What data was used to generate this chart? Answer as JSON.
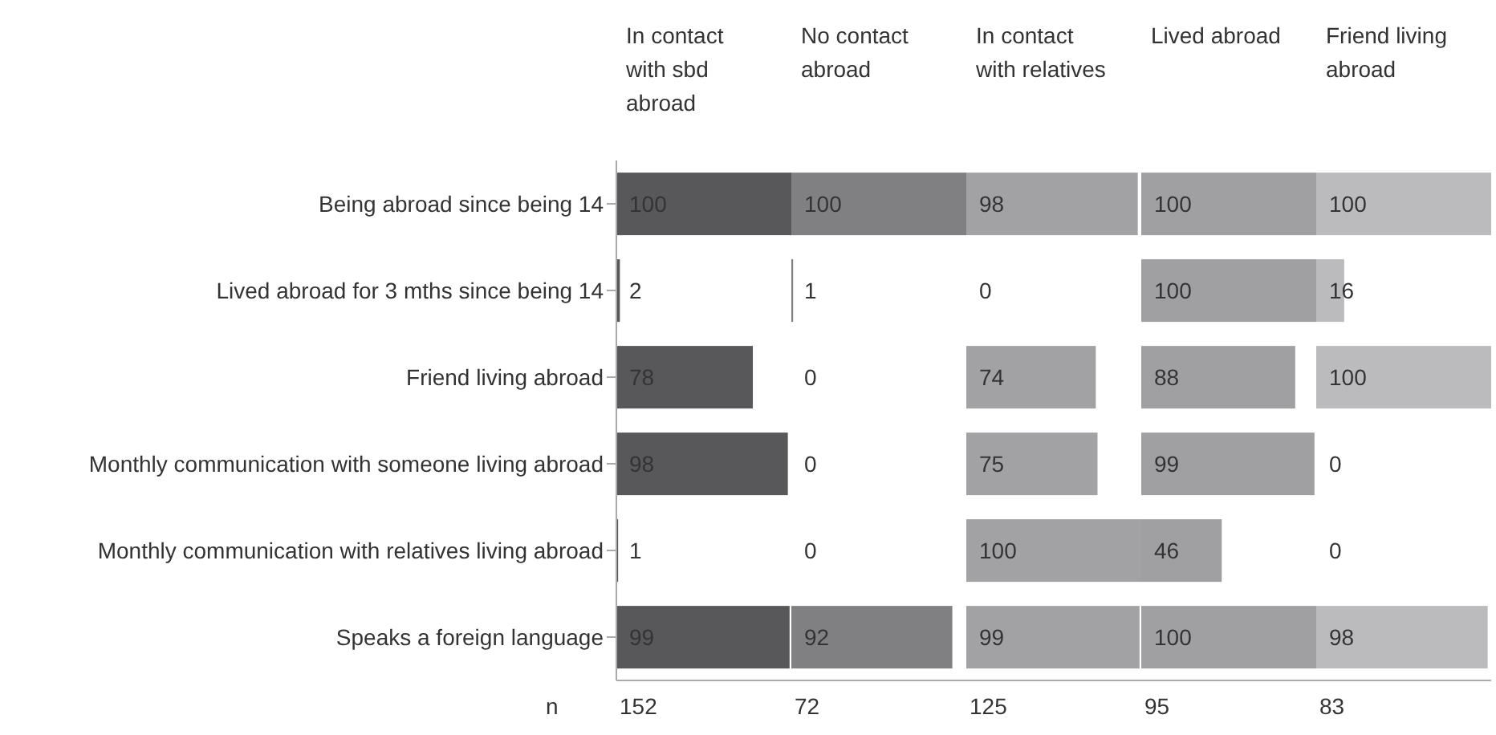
{
  "chart_data": [
    {
      "type": "bar",
      "orientation": "horizontal",
      "title": "In contact with sbd abroad",
      "categories": [
        "Being abroad since being 14",
        "Lived abroad for 3 mths since being 14",
        "Friend living abroad",
        "Monthly communication with someone living abroad",
        "Monthly communication with relatives living abroad",
        "Speaks a foreign language"
      ],
      "values": [
        100,
        2,
        78,
        98,
        1,
        99
      ],
      "color": "#58585a",
      "xlim": [
        0,
        100
      ],
      "data_labels": true,
      "tick_labels": "y",
      "annotations": [
        "n",
        "152"
      ]
    },
    {
      "type": "bar",
      "orientation": "horizontal",
      "title": "No contact abroad",
      "categories": [
        null,
        null,
        null,
        null,
        null,
        null
      ],
      "values": [
        100,
        1,
        0,
        0,
        0,
        92
      ],
      "color": "#808083",
      "xlim": [
        0,
        100
      ],
      "data_labels": true,
      "tick_labels": false,
      "annotations": [
        "72"
      ]
    },
    {
      "type": "bar",
      "orientation": "horizontal",
      "title": "In contact with relatives",
      "categories": [
        null,
        null,
        null,
        null,
        null,
        null
      ],
      "values": [
        98,
        0,
        74,
        75,
        100,
        99
      ],
      "color": "#a2a2a5",
      "xlim": [
        0,
        100
      ],
      "data_labels": true,
      "tick_labels": false,
      "annotations": [
        "125"
      ]
    },
    {
      "type": "bar",
      "orientation": "horizontal",
      "title": "Lived abroad",
      "categories": [
        null,
        null,
        null,
        null,
        null,
        null
      ],
      "values": [
        100,
        100,
        88,
        99,
        46,
        100
      ],
      "color": "#a0a0a3",
      "xlim": [
        0,
        100
      ],
      "data_labels": true,
      "tick_labels": false,
      "annotations": [
        "95"
      ]
    },
    {
      "type": "bar",
      "orientation": "horizontal",
      "title": "Friend living abroad",
      "categories": [
        null,
        null,
        null,
        null,
        null,
        null
      ],
      "values": [
        100,
        16,
        100,
        0,
        0,
        98
      ],
      "color": "#bbbbbe",
      "xlim": [
        0,
        100
      ],
      "data_labels": true,
      "tick_labels": false,
      "annotations": [
        "83"
      ]
    }
  ]
}
